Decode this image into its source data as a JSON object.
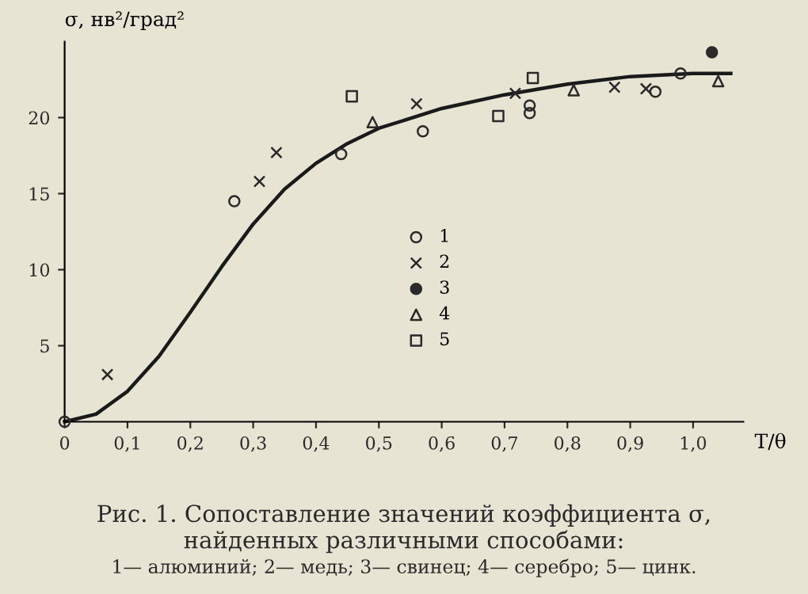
{
  "chart_data": {
    "type": "scatter",
    "title": "Рис. 1. Сопоставление значений коэффициента σ,\nнайденных различными способами:",
    "annotations": [
      "1— алюминий; 2— медь; 3— свинец; 4— серебро; 5— цинк."
    ],
    "xlabel": "T/θ",
    "ylabel": "σ, нв²/град²",
    "xlim": [
      0,
      1.08
    ],
    "ylim": [
      0,
      25
    ],
    "xticks": [
      0,
      {
        "value": 0.1,
        "label": "0,1"
      },
      {
        "value": 0.2,
        "label": "0,2"
      },
      {
        "value": 0.3,
        "label": "0,3"
      },
      {
        "value": 0.4,
        "label": "0,4"
      },
      {
        "value": 0.5,
        "label": "0,5"
      },
      {
        "value": 0.6,
        "label": "0,6"
      },
      {
        "value": 0.7,
        "label": "0,7"
      },
      {
        "value": 0.8,
        "label": "0,8"
      },
      {
        "value": 0.9,
        "label": "0,9"
      },
      {
        "value": 1.0,
        "label": "1,0"
      }
    ],
    "yticks": [
      5,
      10,
      15,
      20
    ],
    "grid": false,
    "legend": "center",
    "series": [
      {
        "name": "1",
        "marker": "circle",
        "color": "#2a2a2a",
        "x": [
          0,
          0.27,
          0.44,
          0.57,
          0.74,
          0.74,
          0.94,
          0.98
        ],
        "values": [
          0,
          14.5,
          17.6,
          19.1,
          20.8,
          20.3,
          21.7,
          22.9
        ]
      },
      {
        "name": "2",
        "marker": "cross",
        "color": "#2a2a2a",
        "x": [
          0.068,
          0.31,
          0.337,
          0.56,
          0.717,
          0.875,
          0.925
        ],
        "values": [
          3.1,
          15.8,
          17.7,
          20.9,
          21.6,
          22.0,
          21.9
        ]
      },
      {
        "name": "3",
        "marker": "filled_circle",
        "color": "#2a2a2a",
        "x": [
          1.03
        ],
        "values": [
          24.3
        ]
      },
      {
        "name": "4",
        "marker": "triangle",
        "color": "#2a2a2a",
        "x": [
          0.49,
          0.81,
          1.04
        ],
        "values": [
          19.7,
          21.8,
          22.4
        ]
      },
      {
        "name": "5",
        "marker": "square",
        "color": "#2a2a2a",
        "x": [
          0.457,
          0.69,
          0.745
        ],
        "values": [
          21.4,
          20.1,
          22.6
        ]
      },
      {
        "type": "line",
        "color": "#1a1a1a",
        "x": [
          0,
          0.05,
          0.1,
          0.15,
          0.2,
          0.25,
          0.3,
          0.35,
          0.4,
          0.45,
          0.5,
          0.6,
          0.7,
          0.8,
          0.9,
          1.0,
          1.06
        ],
        "values": [
          0,
          0.5,
          2,
          4.3,
          7.2,
          10.2,
          13,
          15.3,
          17,
          18.3,
          19.3,
          20.6,
          21.5,
          22.2,
          22.7,
          22.9,
          22.9
        ]
      }
    ]
  }
}
